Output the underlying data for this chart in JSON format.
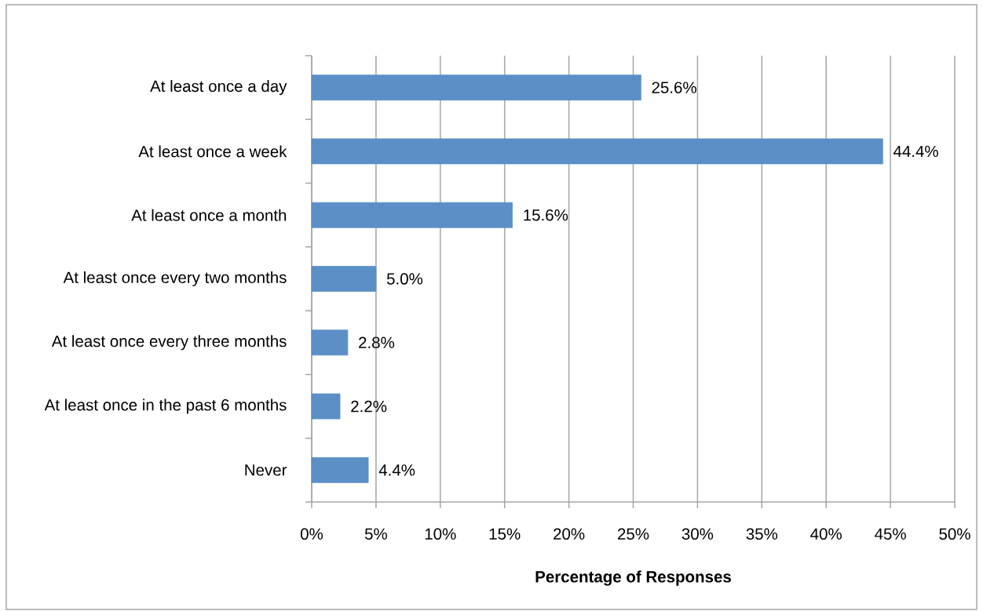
{
  "chart_data": {
    "type": "bar",
    "orientation": "horizontal",
    "xlabel": "Percentage of Responses",
    "categories": [
      "At least once a day",
      "At least once a week",
      "At least once a month",
      "At least once every two months",
      "At least once every three months",
      "At least once in the past 6 months",
      "Never"
    ],
    "values": [
      25.6,
      44.4,
      15.6,
      5.0,
      2.8,
      2.2,
      4.4
    ],
    "value_labels": [
      "25.6%",
      "44.4%",
      "15.6%",
      "5.0%",
      "2.8%",
      "2.2%",
      "4.4%"
    ],
    "color": "#5b8fc6",
    "xlim": [
      0,
      50
    ],
    "xticks": [
      {
        "value": 0,
        "label": "0%"
      },
      {
        "value": 5,
        "label": "5%"
      },
      {
        "value": 10,
        "label": "10%"
      },
      {
        "value": 15,
        "label": "15%"
      },
      {
        "value": 20,
        "label": "20%"
      },
      {
        "value": 25,
        "label": "25%"
      },
      {
        "value": 30,
        "label": "30%"
      },
      {
        "value": 35,
        "label": "35%"
      },
      {
        "value": 40,
        "label": "40%"
      },
      {
        "value": 45,
        "label": "45%"
      },
      {
        "value": 50,
        "label": "50%"
      }
    ],
    "grid": "x"
  }
}
